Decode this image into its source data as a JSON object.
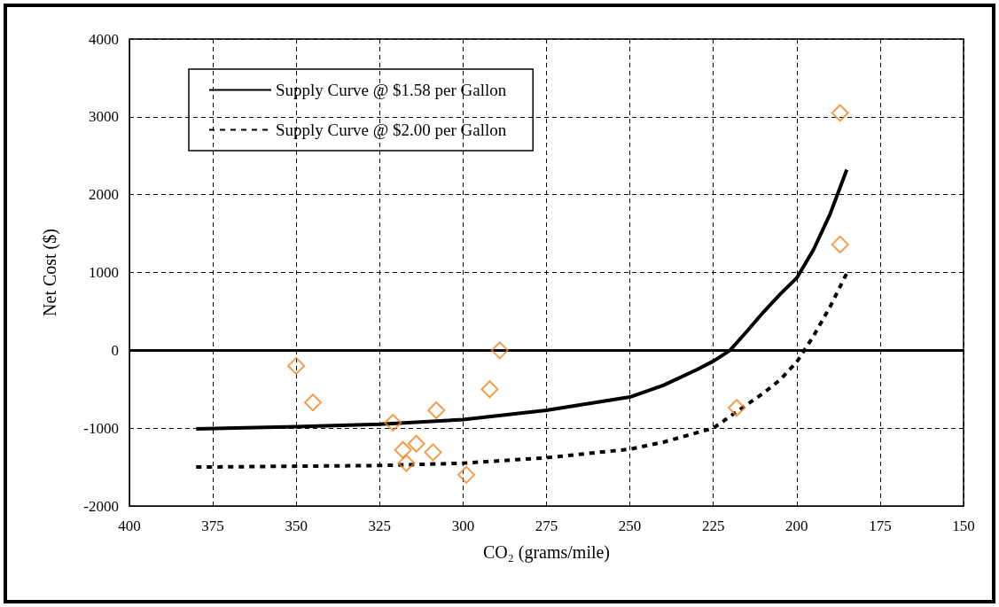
{
  "chart_data": {
    "type": "line",
    "xlabel": "CO₂ (grams/mile)",
    "ylabel": "Net Cost ($)",
    "xlim": [
      400,
      150
    ],
    "xticks": [
      400,
      375,
      350,
      325,
      300,
      275,
      250,
      225,
      200,
      175,
      150
    ],
    "ylim": [
      -2000,
      4000
    ],
    "yticks": [
      -2000,
      -1000,
      0,
      1000,
      2000,
      3000,
      4000
    ],
    "grid": true,
    "legend": "top left",
    "marker": "none",
    "ref_lines": [
      {
        "axis": "y",
        "value": 0,
        "color": "#000000",
        "line_style": "solid"
      }
    ],
    "series": [
      {
        "name": "Supply Curve @ $1.58 per Gallon",
        "line_style": "solid",
        "color": "#000000",
        "x": [
          380,
          350,
          325,
          300,
          275,
          250,
          240,
          230,
          225,
          220,
          215,
          210,
          205,
          200,
          195,
          190,
          185
        ],
        "values": [
          -1010,
          -980,
          -950,
          -890,
          -770,
          -600,
          -450,
          -250,
          -140,
          0,
          240,
          490,
          720,
          930,
          1290,
          1750,
          2320
        ]
      },
      {
        "name": "Supply Curve @ $2.00 per Gallon",
        "line_style": "dotted",
        "color": "#000000",
        "x": [
          380,
          325,
          300,
          275,
          250,
          240,
          230,
          225,
          220,
          215,
          210,
          205,
          200,
          195,
          190,
          185
        ],
        "values": [
          -1500,
          -1480,
          -1450,
          -1380,
          -1270,
          -1180,
          -1060,
          -1000,
          -850,
          -700,
          -550,
          -380,
          -150,
          180,
          560,
          990
        ]
      },
      {
        "type": "scatter",
        "marker": "diamond",
        "color": "#f0851f",
        "x": [
          350,
          345,
          321,
          318,
          317,
          314,
          309,
          308,
          299,
          292,
          289,
          218,
          187,
          187
        ],
        "values": [
          -200,
          -670,
          -930,
          -1280,
          -1450,
          -1200,
          -1310,
          -770,
          -1600,
          -500,
          0,
          -740,
          3050,
          1360
        ]
      }
    ]
  }
}
